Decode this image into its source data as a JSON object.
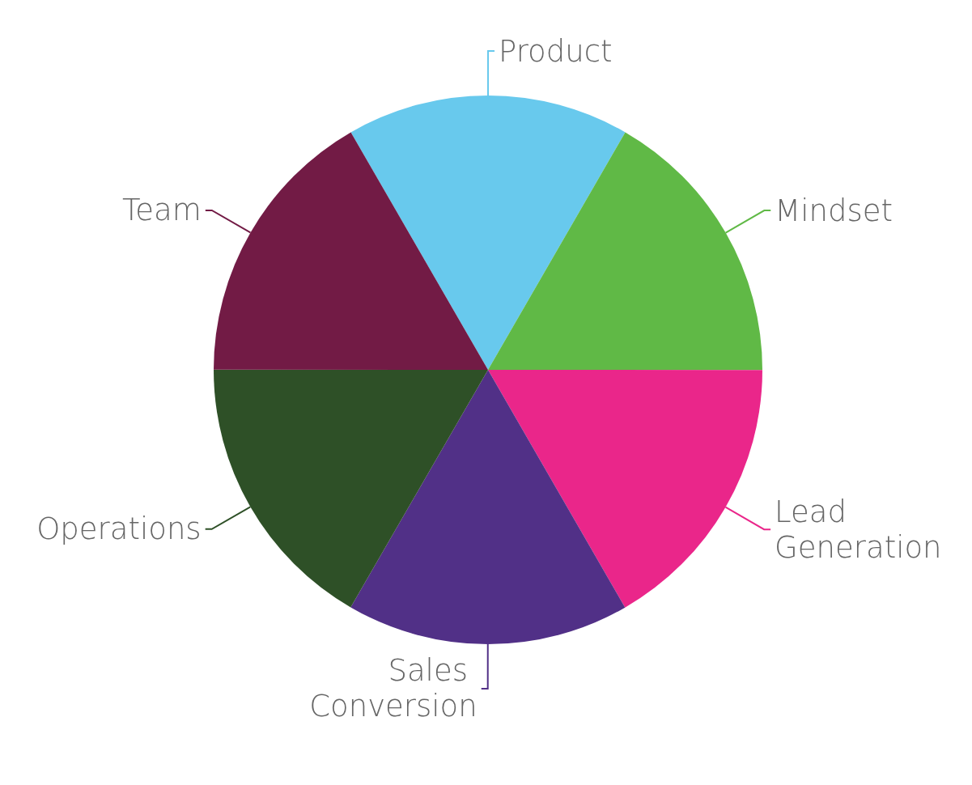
{
  "chart_data": {
    "type": "pie",
    "categories": [
      "Product",
      "Mindset",
      "Lead Generation",
      "Sales Conversion",
      "Operations",
      "Team"
    ],
    "values": [
      16.67,
      16.67,
      16.67,
      16.67,
      16.66,
      16.66
    ],
    "colors": [
      "#68c9ed",
      "#60b946",
      "#ea268a",
      "#513087",
      "#2e5027",
      "#721b45"
    ],
    "legend": false
  }
}
